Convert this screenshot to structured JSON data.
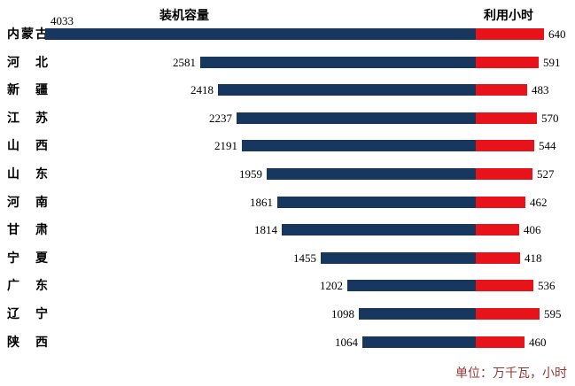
{
  "header": {
    "left_title": "装机容量",
    "right_title": "利用小时"
  },
  "footer": {
    "unit_note": "单位：万千瓦，小时"
  },
  "colors": {
    "capacity_bar": "#17375E",
    "hours_bar": "#E8121B",
    "note_text": "#953735",
    "background": "#FFFFFF"
  },
  "chart_data": {
    "type": "bar",
    "orientation": "horizontal-paired",
    "title": "",
    "left_axis_title": "装机容量",
    "right_axis_title": "利用小时",
    "note": "单位：万千瓦，小时",
    "grid": false,
    "legend_position": "none",
    "value_labels_shown": true,
    "categories": [
      "内蒙古",
      "河北",
      "新疆",
      "江苏",
      "山西",
      "山东",
      "河南",
      "甘肃",
      "宁夏",
      "广东",
      "辽宁",
      "陕西"
    ],
    "series": [
      {
        "name": "装机容量",
        "color": "#17375E",
        "values": [
          4033,
          2581,
          2418,
          2237,
          2191,
          1959,
          1861,
          1814,
          1455,
          1202,
          1098,
          1064
        ]
      },
      {
        "name": "利用小时",
        "color": "#E8121B",
        "values": [
          640,
          591,
          483,
          570,
          544,
          527,
          462,
          406,
          418,
          536,
          595,
          460
        ]
      }
    ]
  }
}
